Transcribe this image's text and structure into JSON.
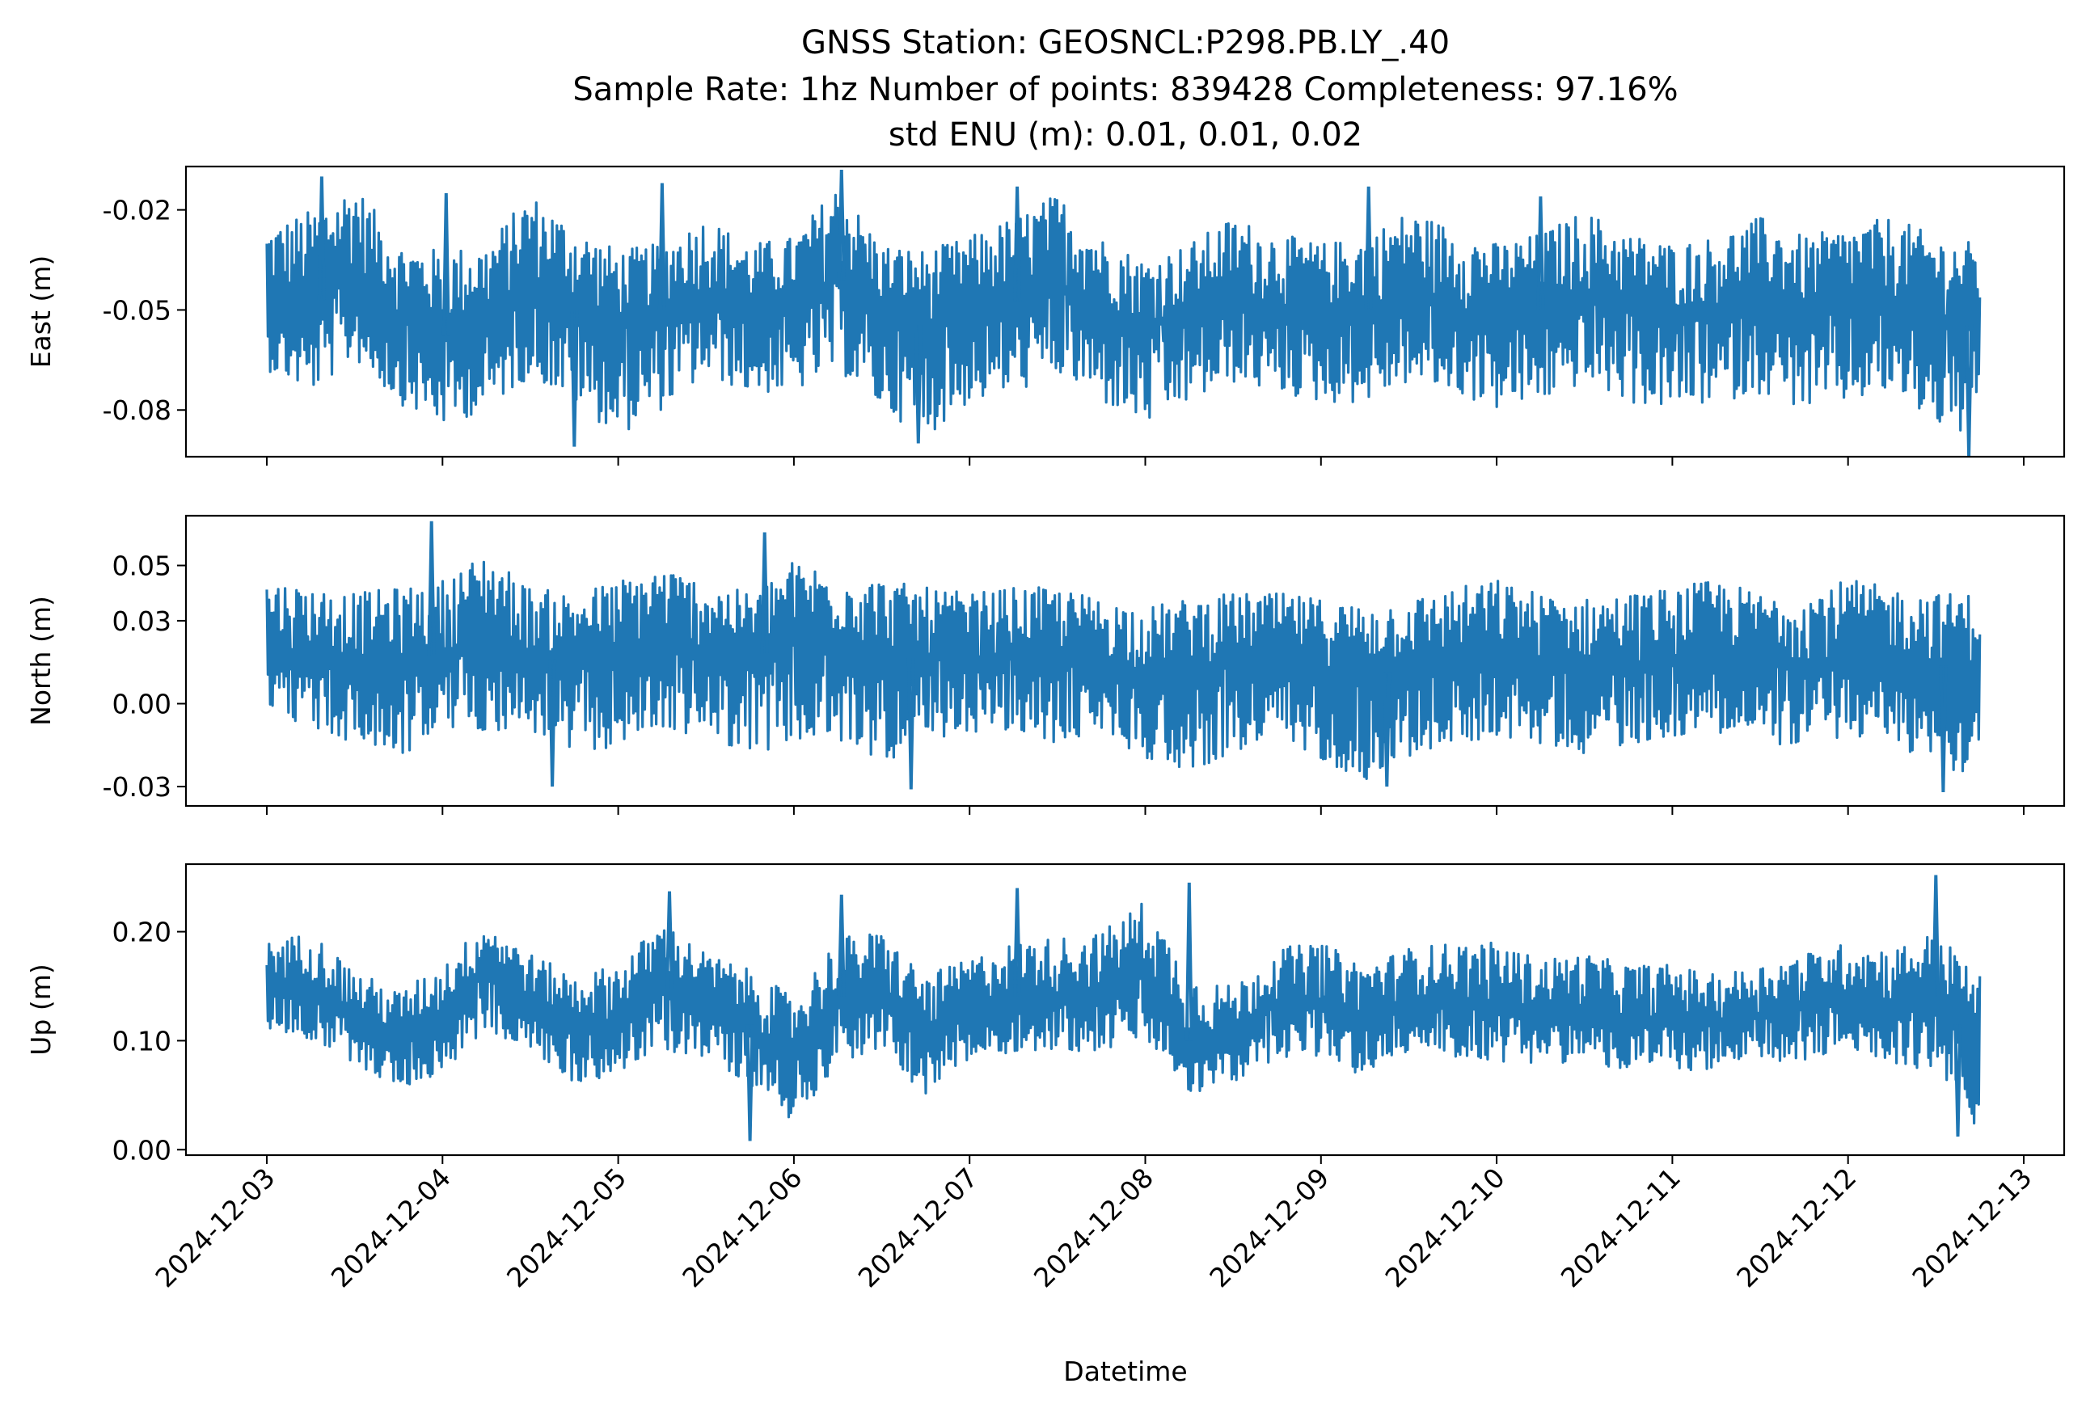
{
  "title_lines": [
    "GNSS Station: GEOSNCL:P298.PB.LY_.40",
    "Sample Rate: 1hz   Number of points: 839428    Completeness:  97.16%",
    "std ENU (m):  0.01, 0.01, 0.02"
  ],
  "chart_data": {
    "type": "line",
    "xlabel": "Datetime",
    "x_range": [
      "2024-12-03T00:00",
      "2024-12-12T18:00"
    ],
    "x_ticks": [
      "2024-12-03",
      "2024-12-04",
      "2024-12-05",
      "2024-12-06",
      "2024-12-07",
      "2024-12-08",
      "2024-12-09",
      "2024-12-10",
      "2024-12-11",
      "2024-12-12",
      "2024-12-13"
    ],
    "color": "#1f77b4",
    "grid": false,
    "legend": false,
    "panels": [
      {
        "ylabel": "East (m)",
        "ylim": [
          -0.094,
          -0.007
        ],
        "y_ticks": [
          -0.08,
          -0.05,
          -0.02
        ],
        "y_tick_labels": [
          "-0.08",
          "-0.05",
          "-0.02"
        ],
        "series": {
          "center": [
            -0.048,
            -0.05,
            -0.038,
            -0.052,
            -0.058,
            -0.055,
            -0.042,
            -0.05,
            -0.055,
            -0.05,
            -0.045,
            -0.052,
            -0.05,
            -0.04,
            -0.052,
            -0.055,
            -0.05,
            -0.048,
            -0.042,
            -0.05,
            -0.055,
            -0.052,
            -0.048,
            -0.05,
            -0.052,
            -0.05,
            -0.046,
            -0.05,
            -0.052,
            -0.05,
            -0.046,
            -0.05,
            -0.052,
            -0.05,
            -0.048,
            -0.052,
            -0.05,
            -0.048,
            -0.052,
            -0.055
          ],
          "upper": [
            -0.025,
            -0.02,
            -0.012,
            -0.03,
            -0.032,
            -0.03,
            -0.015,
            -0.025,
            -0.032,
            -0.03,
            -0.022,
            -0.03,
            -0.028,
            -0.012,
            -0.03,
            -0.032,
            -0.028,
            -0.022,
            -0.015,
            -0.028,
            -0.035,
            -0.03,
            -0.022,
            -0.027,
            -0.03,
            -0.028,
            -0.02,
            -0.025,
            -0.03,
            -0.027,
            -0.02,
            -0.027,
            -0.03,
            -0.028,
            -0.022,
            -0.028,
            -0.025,
            -0.022,
            -0.028,
            -0.03
          ],
          "lower": [
            -0.068,
            -0.075,
            -0.065,
            -0.078,
            -0.085,
            -0.08,
            -0.07,
            -0.078,
            -0.088,
            -0.08,
            -0.07,
            -0.075,
            -0.075,
            -0.068,
            -0.08,
            -0.088,
            -0.078,
            -0.075,
            -0.07,
            -0.078,
            -0.085,
            -0.078,
            -0.072,
            -0.075,
            -0.078,
            -0.078,
            -0.072,
            -0.075,
            -0.08,
            -0.078,
            -0.072,
            -0.078,
            -0.08,
            -0.078,
            -0.075,
            -0.08,
            -0.078,
            -0.075,
            -0.085,
            -0.09
          ],
          "spikes": [
            {
              "x": "2024-12-03T07:30",
              "y": -0.01
            },
            {
              "x": "2024-12-04T00:30",
              "y": -0.015
            },
            {
              "x": "2024-12-05T06:00",
              "y": -0.012
            },
            {
              "x": "2024-12-06T06:30",
              "y": -0.008
            },
            {
              "x": "2024-12-07T06:30",
              "y": -0.013
            },
            {
              "x": "2024-12-09T06:30",
              "y": -0.013
            },
            {
              "x": "2024-12-10T06:00",
              "y": -0.016
            },
            {
              "x": "2024-12-04T18:00",
              "y": -0.091
            },
            {
              "x": "2024-12-06T17:00",
              "y": -0.09
            },
            {
              "x": "2024-12-12T16:30",
              "y": -0.094
            }
          ]
        }
      },
      {
        "ylabel": "North (m)",
        "ylim": [
          -0.037,
          0.068
        ],
        "y_ticks": [
          -0.03,
          0.0,
          0.03,
          0.05
        ],
        "y_tick_labels": [
          "-0.03",
          "0.00",
          "0.03",
          "0.05"
        ],
        "series": {
          "center": [
            0.02,
            0.018,
            0.016,
            0.015,
            0.018,
            0.025,
            0.017,
            0.015,
            0.015,
            0.022,
            0.018,
            0.016,
            0.022,
            0.02,
            0.018,
            0.016,
            0.016,
            0.017,
            0.016,
            0.015,
            0.01,
            0.013,
            0.015,
            0.015,
            0.013,
            0.01,
            0.013,
            0.014,
            0.016,
            0.015,
            0.013,
            0.014,
            0.015,
            0.017,
            0.016,
            0.015,
            0.016,
            0.015,
            0.014,
            0.013
          ],
          "upper": [
            0.045,
            0.042,
            0.04,
            0.042,
            0.045,
            0.055,
            0.042,
            0.04,
            0.045,
            0.05,
            0.044,
            0.04,
            0.052,
            0.048,
            0.045,
            0.042,
            0.04,
            0.042,
            0.042,
            0.038,
            0.035,
            0.038,
            0.04,
            0.04,
            0.038,
            0.036,
            0.038,
            0.042,
            0.045,
            0.04,
            0.038,
            0.04,
            0.042,
            0.045,
            0.04,
            0.04,
            0.045,
            0.042,
            0.04,
            0.04
          ],
          "lower": [
            0.0,
            -0.01,
            -0.015,
            -0.02,
            -0.01,
            -0.01,
            -0.01,
            -0.02,
            -0.015,
            -0.01,
            -0.012,
            -0.018,
            -0.015,
            -0.015,
            -0.02,
            -0.02,
            -0.01,
            -0.012,
            -0.015,
            -0.01,
            -0.02,
            -0.025,
            -0.018,
            -0.015,
            -0.02,
            -0.028,
            -0.02,
            -0.015,
            -0.012,
            -0.015,
            -0.018,
            -0.015,
            -0.012,
            -0.01,
            -0.015,
            -0.015,
            -0.012,
            -0.015,
            -0.022,
            -0.028
          ],
          "spikes": [
            {
              "x": "2024-12-03T22:30",
              "y": 0.066
            },
            {
              "x": "2024-12-05T20:00",
              "y": 0.062
            },
            {
              "x": "2024-12-04T15:00",
              "y": -0.03
            },
            {
              "x": "2024-12-06T16:00",
              "y": -0.031
            },
            {
              "x": "2024-12-09T09:00",
              "y": -0.03
            },
            {
              "x": "2024-12-12T13:00",
              "y": -0.032
            }
          ]
        }
      },
      {
        "ylabel": "Up (m)",
        "ylim": [
          -0.005,
          0.262
        ],
        "y_ticks": [
          0.0,
          0.1,
          0.2
        ],
        "y_tick_labels": [
          "0.00",
          "0.10",
          "0.20"
        ],
        "series": {
          "center": [
            0.15,
            0.155,
            0.115,
            0.1,
            0.12,
            0.165,
            0.135,
            0.11,
            0.12,
            0.15,
            0.135,
            0.115,
            0.08,
            0.14,
            0.14,
            0.1,
            0.13,
            0.14,
            0.14,
            0.14,
            0.16,
            0.1,
            0.1,
            0.135,
            0.135,
            0.12,
            0.14,
            0.135,
            0.13,
            0.125,
            0.13,
            0.12,
            0.12,
            0.115,
            0.125,
            0.13,
            0.14,
            0.13,
            0.14,
            0.09
          ],
          "upper": [
            0.19,
            0.2,
            0.165,
            0.145,
            0.17,
            0.21,
            0.18,
            0.16,
            0.17,
            0.21,
            0.18,
            0.165,
            0.14,
            0.195,
            0.2,
            0.16,
            0.175,
            0.19,
            0.195,
            0.2,
            0.23,
            0.16,
            0.15,
            0.185,
            0.19,
            0.17,
            0.185,
            0.19,
            0.19,
            0.175,
            0.18,
            0.17,
            0.17,
            0.16,
            0.17,
            0.18,
            0.19,
            0.185,
            0.2,
            0.16
          ],
          "lower": [
            0.11,
            0.1,
            0.08,
            0.055,
            0.07,
            0.11,
            0.09,
            0.06,
            0.07,
            0.09,
            0.085,
            0.06,
            0.025,
            0.08,
            0.09,
            0.05,
            0.08,
            0.09,
            0.09,
            0.09,
            0.1,
            0.05,
            0.06,
            0.085,
            0.085,
            0.065,
            0.09,
            0.085,
            0.08,
            0.08,
            0.08,
            0.07,
            0.075,
            0.07,
            0.08,
            0.08,
            0.09,
            0.08,
            0.07,
            0.015
          ],
          "spikes": [
            {
              "x": "2024-12-05T07:00",
              "y": 0.237
            },
            {
              "x": "2024-12-06T06:30",
              "y": 0.234
            },
            {
              "x": "2024-12-07T06:30",
              "y": 0.24
            },
            {
              "x": "2024-12-08T06:00",
              "y": 0.245
            },
            {
              "x": "2024-12-12T12:00",
              "y": 0.252
            },
            {
              "x": "2024-12-05T18:00",
              "y": 0.008
            },
            {
              "x": "2024-12-12T15:00",
              "y": 0.012
            }
          ]
        }
      }
    ]
  }
}
